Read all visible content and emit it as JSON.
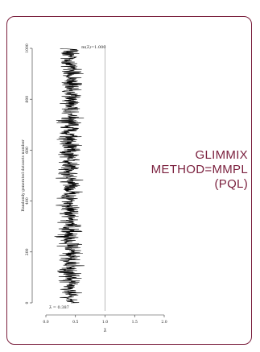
{
  "caption": {
    "line1": "GLIMMIX",
    "line2": "METHOD=MMPL",
    "line3": "(PQL)"
  },
  "chart_data": {
    "type": "line",
    "orientation": "horizontal-trace",
    "ylabel": "Randomly generated datasets number",
    "xlabel": "λ̂",
    "ylim": [
      0,
      1000
    ],
    "xlim": [
      0,
      2
    ],
    "yticks": [
      0,
      200,
      400,
      600,
      800,
      1000
    ],
    "yticklabels": [
      "0",
      "200",
      "400",
      "600",
      "800",
      "1000"
    ],
    "xticks": [
      0.0,
      0.5,
      1.0,
      1.5,
      2.0
    ],
    "xticklabels": [
      "0.0",
      "0.5",
      "1.0",
      "1.5",
      "2.0"
    ],
    "series": [
      {
        "n": 1000,
        "center": 0.387,
        "spread": [
          0.13,
          0.68
        ]
      }
    ],
    "reference_line": {
      "x": 1.0,
      "label": "m(λ̂)=1.000"
    },
    "mean_label": "λ̂ = 0.387",
    "colors": {
      "trace": "#000000",
      "reference": "#aaaaaa",
      "accent": "#7a1f3d"
    }
  }
}
